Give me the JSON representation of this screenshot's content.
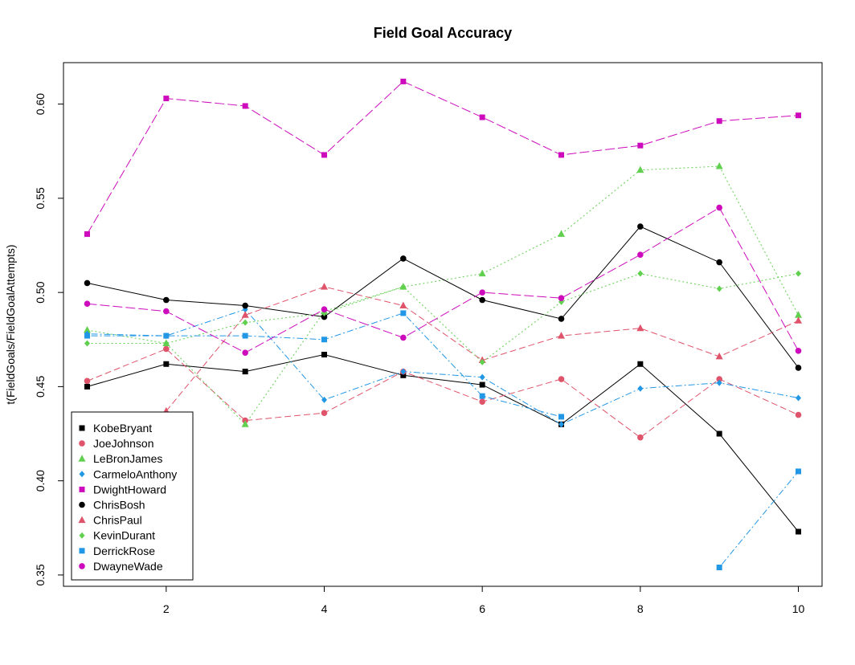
{
  "chart_data": {
    "type": "line",
    "title": "Field Goal Accuracy",
    "xlabel": "",
    "ylabel": "t(FieldGoals/FieldGoalAttempts)",
    "xlim": [
      0.7,
      10.3
    ],
    "ylim": [
      0.344,
      0.622
    ],
    "x": [
      1,
      2,
      3,
      4,
      5,
      6,
      7,
      8,
      9,
      10
    ],
    "x_ticks": [
      2,
      4,
      6,
      8,
      10
    ],
    "y_ticks": [
      0.35,
      0.4,
      0.45,
      0.5,
      0.55,
      0.6
    ],
    "y_tick_labels": [
      "0.35",
      "0.40",
      "0.45",
      "0.50",
      "0.55",
      "0.60"
    ],
    "grid": false,
    "legend_position": "bottom-left",
    "series": [
      {
        "name": "KobeBryant",
        "color": "#000000",
        "marker": "square",
        "dash": "",
        "values": [
          0.45,
          0.462,
          0.458,
          0.467,
          0.456,
          0.451,
          0.43,
          0.462,
          0.425,
          0.373
        ]
      },
      {
        "name": "JoeJohnson",
        "color": "#DF536B",
        "marker": "circle",
        "dash": "8,4",
        "values": [
          0.453,
          0.47,
          0.432,
          0.436,
          0.458,
          0.442,
          0.454,
          0.423,
          0.454,
          0.435
        ]
      },
      {
        "name": "LeBronJames",
        "color": "#61D04F",
        "marker": "triangle",
        "dash": "2,3",
        "values": [
          0.48,
          0.473,
          0.43,
          0.49,
          0.503,
          0.51,
          0.531,
          0.565,
          0.567,
          0.488
        ]
      },
      {
        "name": "CarmeloAnthony",
        "color": "#2297E6",
        "marker": "diamond",
        "dash": "2,3,8,3",
        "values": [
          0.478,
          0.477,
          0.491,
          0.443,
          0.458,
          0.455,
          0.43,
          0.449,
          0.452,
          0.444
        ]
      },
      {
        "name": "DwightHoward",
        "color": "#CD0BBC",
        "marker": "square",
        "dash": "12,4",
        "values": [
          0.531,
          0.603,
          0.599,
          0.573,
          0.612,
          0.593,
          0.573,
          0.578,
          0.591,
          0.594
        ]
      },
      {
        "name": "ChrisBosh",
        "color": "#000000",
        "marker": "circle",
        "dash": "",
        "values": [
          0.505,
          0.496,
          0.493,
          0.487,
          0.518,
          0.496,
          0.486,
          0.535,
          0.516,
          0.46
        ]
      },
      {
        "name": "ChrisPaul",
        "color": "#DF536B",
        "marker": "triangle",
        "dash": "8,4",
        "values": [
          null,
          0.437,
          0.488,
          0.503,
          0.493,
          0.464,
          0.477,
          0.481,
          0.466,
          0.485
        ]
      },
      {
        "name": "KevinDurant",
        "color": "#61D04F",
        "marker": "diamond",
        "dash": "2,3",
        "values": [
          0.473,
          0.473,
          0.484,
          0.489,
          0.503,
          0.463,
          0.495,
          0.51,
          0.502,
          0.51
        ]
      },
      {
        "name": "DerrickRose",
        "color": "#2297E6",
        "marker": "square",
        "dash": "2,3,8,3",
        "values": [
          0.477,
          0.477,
          0.477,
          0.475,
          0.489,
          0.445,
          0.434,
          null,
          0.354,
          0.405
        ]
      },
      {
        "name": "DwayneWade",
        "color": "#CD0BBC",
        "marker": "circle",
        "dash": "12,4",
        "values": [
          0.494,
          0.49,
          0.468,
          0.491,
          0.476,
          0.5,
          0.497,
          0.52,
          0.545,
          0.469
        ]
      }
    ]
  }
}
